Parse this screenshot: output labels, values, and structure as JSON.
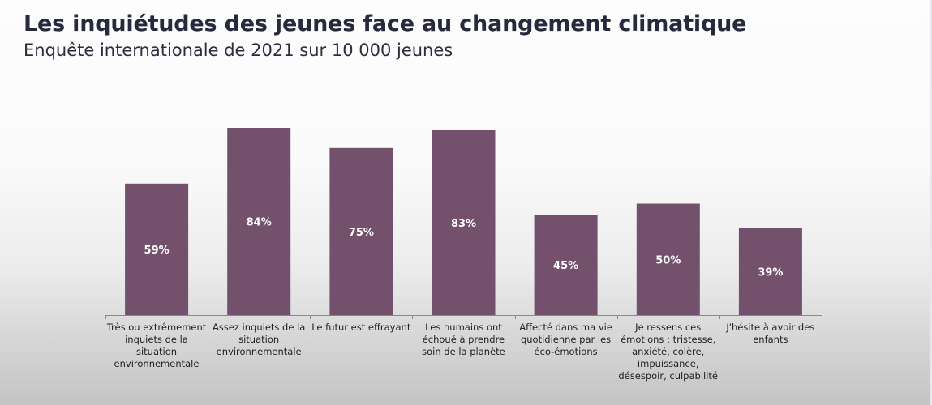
{
  "page": {
    "title": "Les inquiétudes des jeunes face au changement climatique",
    "subtitle": "Enquête internationale de 2021 sur 10 000 jeunes"
  },
  "chart_data": {
    "type": "bar",
    "title": "Les inquiétudes des jeunes face au changement climatique",
    "subtitle": "Enquête internationale de 2021 sur 10 000 jeunes",
    "xlabel": "",
    "ylabel": "",
    "ylim": [
      0,
      100
    ],
    "grid": false,
    "legend": "none",
    "bar_color": "#73506b",
    "label_color": "#ffffff",
    "categories": [
      "Très ou extrêmement inquiets de la situation environnementale",
      "Assez inquiets de la situation environnementale",
      "Le futur est effrayant",
      "Les humains ont échoué à prendre soin de la planète",
      "Affecté dans ma vie quotidienne par les éco-émotions",
      "Je ressens ces émotions : tristesse, anxiété, colère, impuissance, désespoir, culpabilité",
      "J'hésite à avoir des enfants"
    ],
    "values": [
      59,
      84,
      75,
      83,
      45,
      50,
      39
    ],
    "data_labels": [
      "59%",
      "84%",
      "75%",
      "83%",
      "45%",
      "50%",
      "39%"
    ]
  }
}
